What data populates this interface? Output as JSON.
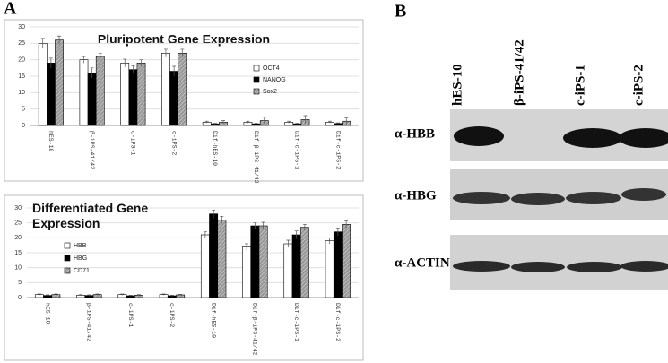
{
  "panel_labels": [
    "A",
    "B"
  ],
  "chart_data": [
    {
      "type": "bar",
      "title": "Pluripotent Gene Expression",
      "categories": [
        "hES-10",
        "β-iPS-41/42",
        "c-iPS-1",
        "c-iPS-2",
        "Dif-hES-10",
        "Dif-β-iPS-41/42",
        "Dif-c-iPS-1",
        "Dif-c-iPS-2"
      ],
      "series": [
        {
          "name": "OCT4",
          "color": "#ffffff",
          "values": [
            25,
            20,
            19,
            22,
            1,
            1,
            1,
            1
          ],
          "errors": [
            1.5,
            1,
            1.2,
            1.2,
            0.3,
            0.3,
            0.3,
            0.3
          ]
        },
        {
          "name": "NANOG",
          "color": "#000000",
          "values": [
            19,
            16,
            17,
            16.5,
            0.5,
            0.5,
            0.5,
            0.6
          ],
          "errors": [
            1.5,
            1.5,
            1.2,
            1.5,
            0.2,
            0.2,
            0.2,
            0.2
          ]
        },
        {
          "name": "Sox2",
          "color": "#999999",
          "values": [
            26,
            21,
            19,
            22,
            1,
            1.5,
            1.8,
            1.3
          ],
          "errors": [
            1.2,
            1,
            1,
            1.2,
            0.5,
            1,
            1.2,
            1
          ]
        }
      ],
      "ylim": [
        0,
        30
      ],
      "yticks": [
        0,
        5,
        10,
        15,
        20,
        25,
        30
      ],
      "grid": true
    },
    {
      "type": "bar",
      "title": "Differentiated Gene Expression",
      "categories": [
        "hES-10",
        "β-iPS-41/42",
        "c-iPS-1",
        "c-iPS-2",
        "Dif-hES-10",
        "Dif-β-iPS-41/42",
        "Dif-c-iPS-1",
        "Dif-c-iPS-2"
      ],
      "series": [
        {
          "name": "HBB",
          "color": "#ffffff",
          "values": [
            1,
            0.8,
            1,
            1,
            21,
            17,
            18,
            19
          ],
          "errors": [
            0.2,
            0.2,
            0.2,
            0.2,
            1,
            1,
            1.2,
            1
          ]
        },
        {
          "name": "HBG",
          "color": "#000000",
          "values": [
            0.7,
            0.7,
            0.6,
            0.6,
            28,
            24,
            21,
            22
          ],
          "errors": [
            0.2,
            0.2,
            0.2,
            0.2,
            1.3,
            1,
            1.3,
            1.3
          ]
        },
        {
          "name": "CD71",
          "color": "#999999",
          "values": [
            1,
            1,
            0.8,
            0.9,
            26,
            24,
            23.5,
            24.5
          ],
          "errors": [
            0.2,
            0.2,
            0.2,
            0.2,
            1.2,
            1.2,
            1,
            1.2
          ]
        }
      ],
      "ylim": [
        0,
        30
      ],
      "yticks": [
        0,
        5,
        10,
        15,
        20,
        25,
        30
      ],
      "grid": true
    }
  ],
  "blot": {
    "lanes": [
      "hES-10",
      "β-iPS-41/42",
      "c-iPS-1",
      "c-iPS-2"
    ],
    "rows": [
      "α-HBB",
      "α-HBG",
      "α-ACTIN"
    ]
  }
}
